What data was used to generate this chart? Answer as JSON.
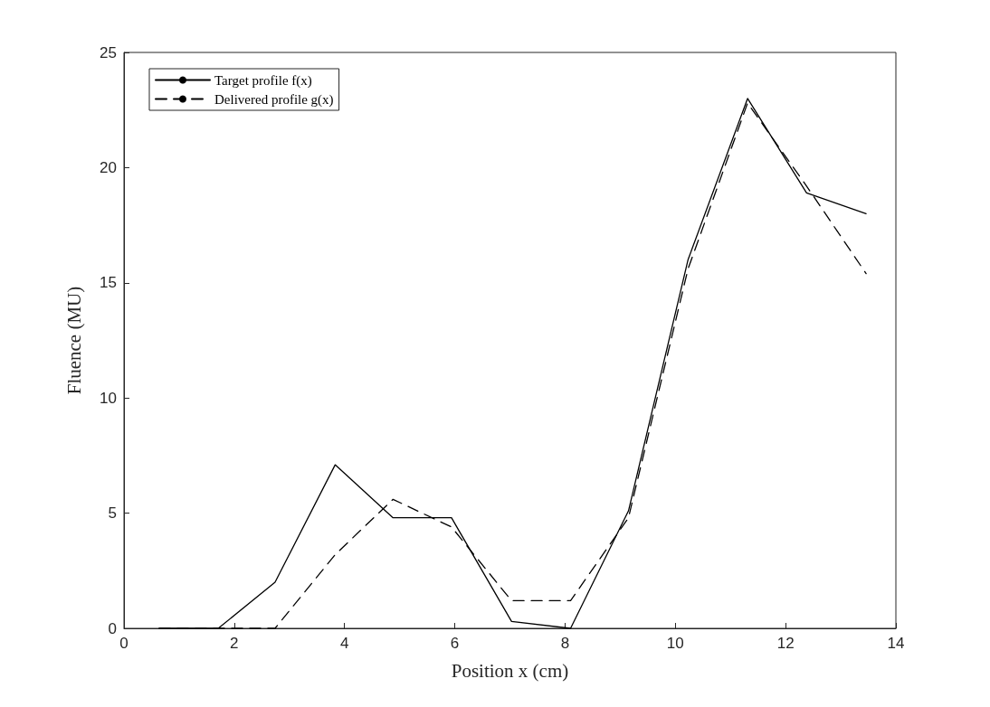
{
  "chart_data": {
    "type": "line",
    "xlabel": "Position x (cm)",
    "ylabel": "Fluence (MU)",
    "x": [
      0.64,
      1.71,
      2.74,
      3.83,
      4.88,
      5.94,
      7.03,
      8.1,
      9.15,
      10.23,
      11.31,
      12.38,
      13.46
    ],
    "series": [
      {
        "name": "Target profile f(x)",
        "color": "#000000",
        "line_style": "solid",
        "values": [
          0,
          0,
          2.0,
          7.1,
          4.8,
          4.8,
          0.3,
          0,
          5.1,
          16.0,
          23.0,
          18.9,
          18.0
        ]
      },
      {
        "name": "Delivered profile g(x)",
        "color": "#000000",
        "line_style": "dashed",
        "values": [
          0,
          0,
          0,
          3.2,
          5.6,
          4.4,
          1.2,
          1.2,
          4.8,
          15.6,
          22.8,
          19.2,
          15.4
        ]
      }
    ],
    "xlim": [
      0,
      14
    ],
    "xticks": [
      0,
      2,
      4,
      6,
      8,
      10,
      12,
      14
    ],
    "ylim": [
      0,
      25
    ],
    "yticks": [
      0,
      5,
      10,
      15,
      20,
      25
    ],
    "grid": false,
    "legend": "top left",
    "marker": "none"
  }
}
